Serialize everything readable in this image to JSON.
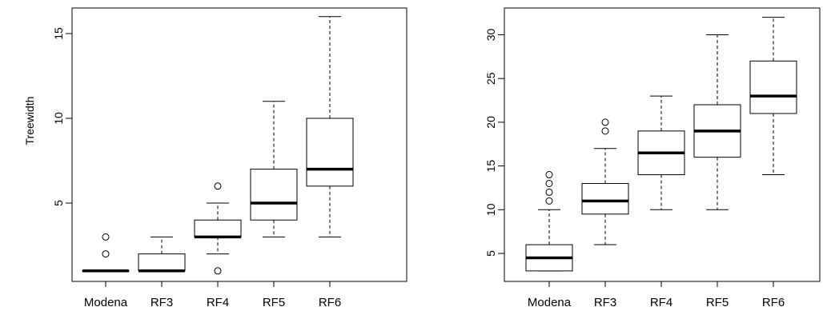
{
  "chart_data": [
    {
      "type": "boxplot",
      "title": "",
      "xlabel": "",
      "ylabel": "Treewidth",
      "ylim": [
        0,
        16
      ],
      "yticks": [
        5,
        10,
        15
      ],
      "categories": [
        "Modena",
        "RF3",
        "RF4",
        "RF5",
        "RF6"
      ],
      "boxes": [
        {
          "category": "Modena",
          "min": 1,
          "q1": 1,
          "median": 1,
          "q3": 1,
          "max": 1,
          "outliers": [
            2,
            3
          ]
        },
        {
          "category": "RF3",
          "min": 1,
          "q1": 1,
          "median": 1,
          "q3": 2,
          "max": 3,
          "outliers": []
        },
        {
          "category": "RF4",
          "min": 2,
          "q1": 3,
          "median": 3,
          "q3": 4,
          "max": 5,
          "outliers": [
            1,
            6
          ]
        },
        {
          "category": "RF5",
          "min": 3,
          "q1": 4,
          "median": 5,
          "q3": 7,
          "max": 11,
          "outliers": []
        },
        {
          "category": "RF6",
          "min": 3,
          "q1": 6,
          "median": 7,
          "q3": 10,
          "max": 16,
          "outliers": []
        }
      ]
    },
    {
      "type": "boxplot",
      "title": "",
      "xlabel": "",
      "ylabel": "",
      "ylim": [
        3,
        32
      ],
      "yticks": [
        5,
        10,
        15,
        20,
        25,
        30
      ],
      "categories": [
        "Modena",
        "RF3",
        "RF4",
        "RF5",
        "RF6"
      ],
      "boxes": [
        {
          "category": "Modena",
          "min": 3,
          "q1": 3,
          "median": 4.5,
          "q3": 6,
          "max": 10,
          "outliers": [
            11,
            12,
            13,
            14
          ]
        },
        {
          "category": "RF3",
          "min": 6,
          "q1": 9.5,
          "median": 11,
          "q3": 13,
          "max": 17,
          "outliers": [
            19,
            20
          ]
        },
        {
          "category": "RF4",
          "min": 10,
          "q1": 14,
          "median": 16.5,
          "q3": 19,
          "max": 23,
          "outliers": []
        },
        {
          "category": "RF5",
          "min": 10,
          "q1": 16,
          "median": 19,
          "q3": 22,
          "max": 30,
          "outliers": []
        },
        {
          "category": "RF6",
          "min": 14,
          "q1": 21,
          "median": 23,
          "q3": 27,
          "max": 32,
          "outliers": []
        }
      ]
    }
  ]
}
